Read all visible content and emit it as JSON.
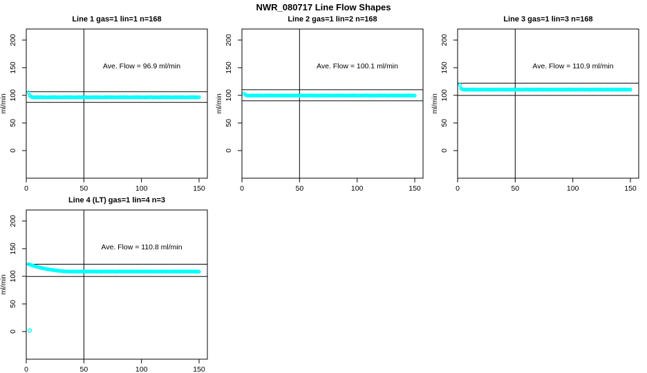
{
  "page": {
    "title": "NWR_080717  Line Flow Shapes",
    "background": "#ffffff"
  },
  "colors": {
    "point": "#00ffff",
    "axis": "#000000",
    "text": "#000000",
    "refline": "#000000"
  },
  "chart_data": [
    {
      "type": "scatter",
      "title": "Line 1 gas=1 lin=1 n=168",
      "ylabel": "ml/min",
      "xlabel": "",
      "annotation": "Ave. Flow =  96.9  ml/min",
      "ave_flow": 96.9,
      "xticks": [
        0,
        50,
        100,
        150
      ],
      "yticks": [
        0,
        50,
        100,
        150,
        200
      ],
      "xlim": [
        0,
        157
      ],
      "ylim": [
        -50,
        220
      ],
      "vline_x": 50,
      "hlines": [
        106.6,
        87.2
      ],
      "x_start": 2,
      "x_step": 1,
      "y": [
        105.2,
        99.5,
        97.8,
        97.0,
        96.5,
        96.2,
        96.7,
        96.4,
        96.8,
        96.3,
        96.6,
        96.9,
        96.1,
        96.5,
        96.7,
        96.3,
        96.5,
        96.2,
        96.7,
        96.4,
        96.8,
        96.3,
        96.6,
        96.9,
        96.1,
        96.5,
        96.7,
        96.3,
        96.5,
        96.2,
        96.7,
        96.4,
        96.8,
        96.3,
        96.6,
        96.9,
        96.1,
        96.5,
        96.7,
        96.3,
        96.5,
        96.2,
        96.7,
        96.4,
        96.8,
        96.3,
        96.6,
        96.9,
        96.1,
        96.5,
        96.7,
        96.3,
        96.5,
        96.2,
        96.7,
        96.4,
        96.8,
        96.3,
        96.6,
        96.9,
        96.1,
        96.5,
        96.7,
        96.3,
        96.5,
        96.2,
        96.7,
        96.4,
        96.8,
        96.3,
        96.6,
        96.9,
        96.1,
        96.5,
        96.7,
        96.3,
        96.5,
        96.2,
        96.7,
        96.4,
        96.8,
        96.3,
        96.6,
        96.9,
        96.1,
        96.5,
        96.7,
        96.3,
        96.5,
        96.2,
        96.7,
        96.4,
        96.8,
        96.3,
        96.6,
        96.9,
        96.1,
        96.5,
        96.7,
        96.3,
        96.5,
        96.2,
        96.7,
        96.4,
        96.8,
        96.3,
        96.6,
        96.9,
        96.1,
        96.5,
        96.7,
        96.3,
        96.5,
        96.2,
        96.7,
        96.4,
        96.8,
        96.3,
        96.6,
        96.9,
        96.1,
        96.5,
        96.7,
        96.3,
        96.5,
        96.2,
        96.7,
        96.4,
        96.8,
        96.3,
        96.6,
        96.9,
        96.1,
        96.5,
        96.7,
        96.3,
        96.5,
        96.2,
        96.7,
        96.4,
        96.8,
        96.3,
        96.6,
        96.9,
        96.1,
        96.5,
        96.7,
        96.3,
        96.5
      ],
      "outliers": []
    },
    {
      "type": "scatter",
      "title": "Line 2 gas=1 lin=2 n=168",
      "ylabel": "ml/min",
      "xlabel": "",
      "annotation": "Ave. Flow =  100.1  ml/min",
      "ave_flow": 100.1,
      "xticks": [
        0,
        50,
        100,
        150
      ],
      "yticks": [
        0,
        50,
        100,
        150,
        200
      ],
      "xlim": [
        0,
        157
      ],
      "ylim": [
        -50,
        220
      ],
      "vline_x": 50,
      "hlines": [
        110.1,
        90.1
      ],
      "x_start": 2,
      "x_step": 1,
      "y": [
        103.0,
        100.8,
        100.0,
        99.8,
        99.6,
        99.3,
        99.8,
        99.5,
        99.9,
        99.4,
        99.7,
        100.0,
        99.2,
        99.6,
        99.8,
        99.4,
        99.6,
        99.3,
        99.8,
        99.5,
        99.9,
        99.4,
        99.7,
        100.0,
        99.2,
        99.6,
        99.8,
        99.4,
        99.6,
        99.3,
        99.8,
        99.5,
        99.9,
        99.4,
        99.7,
        100.0,
        99.2,
        99.6,
        99.8,
        99.4,
        99.6,
        99.3,
        99.8,
        99.5,
        99.9,
        99.4,
        99.7,
        100.0,
        99.2,
        99.6,
        99.8,
        99.4,
        99.6,
        99.3,
        99.8,
        99.5,
        99.9,
        99.4,
        99.7,
        100.0,
        99.2,
        99.6,
        99.8,
        99.4,
        99.6,
        99.3,
        99.8,
        99.5,
        99.9,
        99.4,
        99.7,
        100.0,
        99.2,
        99.6,
        99.8,
        99.4,
        99.6,
        99.3,
        99.8,
        99.5,
        99.9,
        99.4,
        99.7,
        100.0,
        99.2,
        99.6,
        99.8,
        99.4,
        99.6,
        99.3,
        99.8,
        99.5,
        99.9,
        99.4,
        99.7,
        100.0,
        99.2,
        99.6,
        99.8,
        99.4,
        99.6,
        99.3,
        99.8,
        99.5,
        99.9,
        99.4,
        99.7,
        100.0,
        99.2,
        99.6,
        99.8,
        99.4,
        99.6,
        99.3,
        99.8,
        99.5,
        99.9,
        99.4,
        99.7,
        100.0,
        99.2,
        99.6,
        99.8,
        99.4,
        99.6,
        99.3,
        99.8,
        99.5,
        99.9,
        99.4,
        99.7,
        100.0,
        99.2,
        99.6,
        99.8,
        99.4,
        99.6,
        99.3,
        99.8,
        99.5,
        99.9,
        99.4,
        99.7,
        100.0,
        99.2,
        99.6,
        99.8,
        99.4,
        99.6
      ],
      "outliers": []
    },
    {
      "type": "scatter",
      "title": "Line 3 gas=1 lin=3 n=168",
      "ylabel": "ml/min",
      "xlabel": "",
      "annotation": "Ave. Flow =  110.9  ml/min",
      "ave_flow": 110.9,
      "xticks": [
        0,
        50,
        100,
        150
      ],
      "yticks": [
        0,
        50,
        100,
        150,
        200
      ],
      "xlim": [
        0,
        157
      ],
      "ylim": [
        -50,
        220
      ],
      "vline_x": 50,
      "hlines": [
        122.0,
        99.8
      ],
      "x_start": 2,
      "x_step": 1,
      "y": [
        119.0,
        112.5,
        111.0,
        110.6,
        110.4,
        110.1,
        110.6,
        110.3,
        110.7,
        110.2,
        110.5,
        110.8,
        110.0,
        110.4,
        110.6,
        110.2,
        110.4,
        110.1,
        110.6,
        110.3,
        110.7,
        110.2,
        110.5,
        110.8,
        110.0,
        110.4,
        110.6,
        110.2,
        110.4,
        110.1,
        110.6,
        110.3,
        110.7,
        110.2,
        110.5,
        110.8,
        110.0,
        110.4,
        110.6,
        110.2,
        110.4,
        110.1,
        110.6,
        110.3,
        110.7,
        110.2,
        110.5,
        110.8,
        110.0,
        110.4,
        110.6,
        110.2,
        110.4,
        110.1,
        110.6,
        110.3,
        110.7,
        110.2,
        110.5,
        110.8,
        110.0,
        110.4,
        110.6,
        110.2,
        110.4,
        110.1,
        110.6,
        110.3,
        110.7,
        110.2,
        110.5,
        110.8,
        110.0,
        110.4,
        110.6,
        110.2,
        110.4,
        110.1,
        110.6,
        110.3,
        110.7,
        110.2,
        110.5,
        110.8,
        110.0,
        110.4,
        110.6,
        110.2,
        110.4,
        110.1,
        110.6,
        110.3,
        110.7,
        110.2,
        110.5,
        110.8,
        110.0,
        110.4,
        110.6,
        110.2,
        110.4,
        110.1,
        110.6,
        110.3,
        110.7,
        110.2,
        110.5,
        110.8,
        110.0,
        110.4,
        110.6,
        110.2,
        110.4,
        110.1,
        110.6,
        110.3,
        110.7,
        110.2,
        110.5,
        110.8,
        110.0,
        110.4,
        110.6,
        110.2,
        110.4,
        110.1,
        110.6,
        110.3,
        110.7,
        110.2,
        110.5,
        110.8,
        110.0,
        110.4,
        110.6,
        110.2,
        110.4,
        110.1,
        110.6,
        110.3,
        110.7,
        110.2,
        110.5,
        110.8,
        110.0,
        110.4,
        110.6,
        110.2,
        110.4
      ],
      "outliers": []
    },
    {
      "type": "scatter",
      "title": "Line 4 (LT) gas=1 lin=4 n=3",
      "ylabel": "ml/min",
      "xlabel": "",
      "annotation": "Ave. Flow =  110.8  ml/min",
      "ave_flow": 110.8,
      "xticks": [
        0,
        50,
        100,
        150
      ],
      "yticks": [
        0,
        50,
        100,
        150,
        200
      ],
      "xlim": [
        0,
        157
      ],
      "ylim": [
        -50,
        220
      ],
      "vline_x": 50,
      "hlines": [
        121.9,
        99.7
      ],
      "x_start": 2,
      "x_step": 1,
      "y": [
        122.0,
        121.3,
        120.6,
        119.9,
        119.3,
        118.6,
        118.0,
        117.4,
        116.9,
        116.3,
        115.8,
        115.3,
        114.8,
        114.4,
        113.9,
        113.5,
        113.1,
        112.7,
        112.4,
        112.0,
        111.7,
        111.4,
        111.1,
        110.8,
        110.5,
        110.3,
        110.0,
        109.8,
        109.6,
        109.4,
        109.2,
        109.0,
        108.9,
        108.8,
        108.7,
        108.6,
        108.6,
        108.5,
        108.5,
        108.6,
        108.3,
        108.8,
        108.5,
        108.9,
        108.4,
        108.7,
        109.0,
        108.2,
        108.6,
        108.8,
        108.4,
        108.6,
        108.3,
        108.8,
        108.5,
        108.9,
        108.4,
        108.7,
        109.0,
        108.2,
        108.6,
        108.8,
        108.4,
        108.6,
        108.3,
        108.8,
        108.5,
        108.9,
        108.4,
        108.7,
        109.0,
        108.2,
        108.6,
        108.8,
        108.4,
        108.6,
        108.3,
        108.8,
        108.5,
        108.9,
        108.4,
        108.7,
        109.0,
        108.2,
        108.6,
        108.8,
        108.4,
        108.6,
        108.3,
        108.8,
        108.5,
        108.9,
        108.4,
        108.7,
        109.0,
        108.2,
        108.6,
        108.8,
        108.4,
        108.6,
        108.3,
        108.8,
        108.5,
        108.9,
        108.4,
        108.7,
        109.0,
        108.2,
        108.6,
        108.8,
        108.4,
        108.6,
        108.3,
        108.8,
        108.5,
        108.9,
        108.4,
        108.7,
        109.0,
        108.2,
        108.6,
        108.8,
        108.4,
        108.6,
        108.3,
        108.8,
        108.5,
        108.9,
        108.4,
        108.7,
        109.0,
        108.2,
        108.6,
        108.8,
        108.4,
        108.6,
        108.3,
        108.8,
        108.5,
        108.9,
        108.4,
        108.7,
        109.0,
        108.2,
        108.6,
        108.8,
        108.4,
        108.6,
        108.3
      ],
      "outliers": [
        [
          3,
          2.0
        ]
      ]
    }
  ]
}
